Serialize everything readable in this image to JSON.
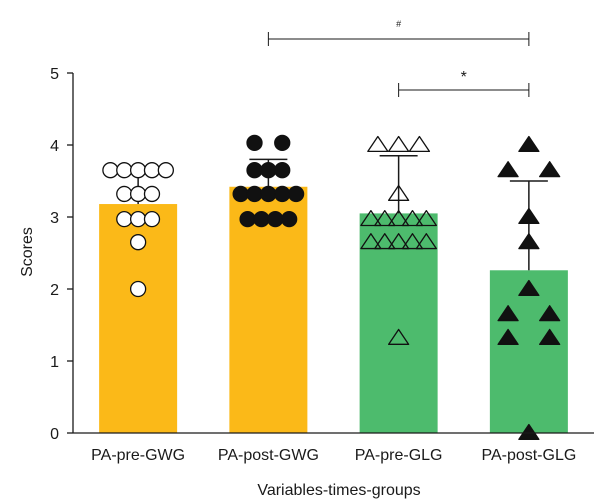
{
  "chart_data": {
    "type": "bar",
    "categories": [
      "PA-pre-GWG",
      "PA-post-GWG",
      "PA-pre-GLG",
      "PA-post-GLG"
    ],
    "values": [
      3.18,
      3.42,
      3.05,
      2.26
    ],
    "error_upper": [
      3.62,
      3.8,
      3.85,
      3.5
    ],
    "bar_colors": [
      "#fbb918",
      "#fbb918",
      "#4dbb6d",
      "#4dbb6d"
    ],
    "marker_shapes": [
      "circle-open",
      "circle-filled",
      "triangle-open",
      "triangle-filled"
    ],
    "points": [
      [
        [
          -0.28,
          3.65
        ],
        [
          -0.14,
          3.65
        ],
        [
          0,
          3.65
        ],
        [
          0.14,
          3.65
        ],
        [
          0.28,
          3.65
        ],
        [
          -0.14,
          3.32
        ],
        [
          0,
          3.32
        ],
        [
          0.14,
          3.32
        ],
        [
          -0.14,
          2.97
        ],
        [
          0,
          2.97
        ],
        [
          0.14,
          2.97
        ],
        [
          0,
          2.65
        ],
        [
          0,
          2.0
        ]
      ],
      [
        [
          -0.14,
          4.03
        ],
        [
          0.14,
          4.03
        ],
        [
          -0.14,
          3.65
        ],
        [
          0,
          3.65
        ],
        [
          0.14,
          3.65
        ],
        [
          -0.28,
          3.32
        ],
        [
          -0.14,
          3.32
        ],
        [
          0,
          3.32
        ],
        [
          0.14,
          3.32
        ],
        [
          0.28,
          3.32
        ],
        [
          -0.21,
          2.97
        ],
        [
          -0.07,
          2.97
        ],
        [
          0.07,
          2.97
        ],
        [
          0.21,
          2.97
        ]
      ],
      [
        [
          -0.21,
          4.0
        ],
        [
          0,
          4.0
        ],
        [
          0.21,
          4.0
        ],
        [
          0,
          3.32
        ],
        [
          -0.28,
          2.97
        ],
        [
          -0.14,
          2.97
        ],
        [
          0,
          2.97
        ],
        [
          0.14,
          2.97
        ],
        [
          0.28,
          2.97
        ],
        [
          -0.28,
          2.65
        ],
        [
          -0.14,
          2.65
        ],
        [
          0,
          2.65
        ],
        [
          0.14,
          2.65
        ],
        [
          0.28,
          2.65
        ],
        [
          0,
          1.32
        ]
      ],
      [
        [
          0,
          4.0
        ],
        [
          -0.21,
          3.65
        ],
        [
          0.21,
          3.65
        ],
        [
          0,
          3.0
        ],
        [
          0,
          2.65
        ],
        [
          0,
          2.0
        ],
        [
          -0.21,
          1.65
        ],
        [
          0.21,
          1.65
        ],
        [
          -0.21,
          1.32
        ],
        [
          0.21,
          1.32
        ],
        [
          0,
          0
        ]
      ]
    ],
    "ylabel": "Scores",
    "xlabel": "Variables-times-groups",
    "ylim": [
      0,
      5
    ],
    "yticks": [
      0,
      1,
      2,
      3,
      4,
      5
    ],
    "significance": [
      {
        "from": 1,
        "to": 3,
        "label": "#"
      },
      {
        "from": 2,
        "to": 3,
        "label": "*"
      }
    ]
  }
}
